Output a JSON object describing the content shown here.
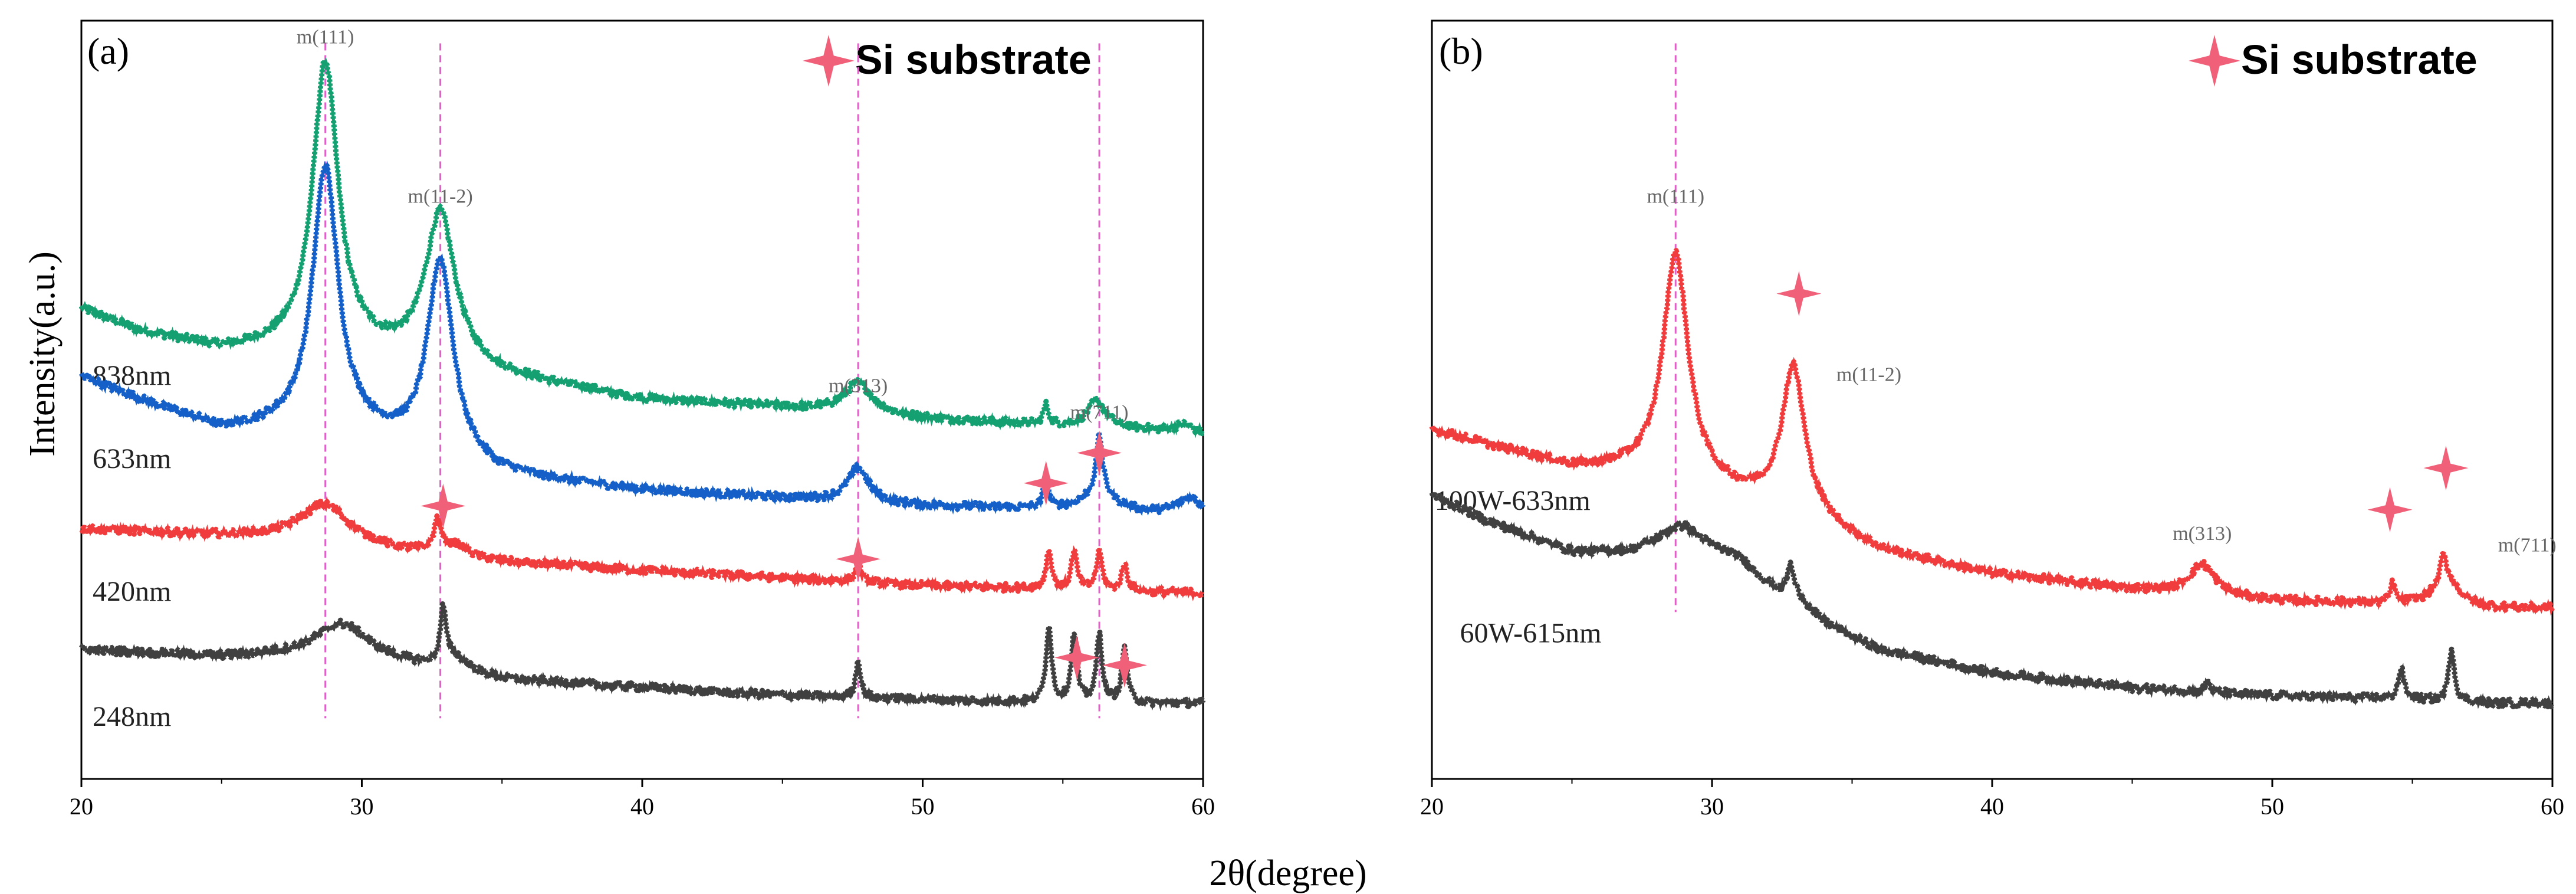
{
  "figure": {
    "xlabel": "2θ(degree)",
    "ylabel": "Intensity(a.u.)"
  },
  "colors": {
    "green": "#14a070",
    "blue": "#1560c8",
    "red": "#f03c3c",
    "gray": "#404040",
    "star": "#f06078",
    "peak_line": "#e060c8"
  },
  "chart_data": [
    {
      "type": "line",
      "panel": "(a)",
      "legend": "Si substrate",
      "xlabel": "2θ(degree)",
      "ylabel": "Intensity(a.u.)",
      "xlim": [
        20,
        60
      ],
      "ylim": [
        0,
        100
      ],
      "xticks": [
        20,
        30,
        40,
        50,
        60
      ],
      "peak_labels": [
        {
          "text": "m(111)",
          "x": 28.7,
          "y": 97
        },
        {
          "text": "m(11-2)",
          "x": 32.8,
          "y": 76
        },
        {
          "text": "m(313)",
          "x": 47.7,
          "y": 51
        },
        {
          "text": "m(711)",
          "x": 56.3,
          "y": 47.5
        }
      ],
      "peak_lines": [
        28.7,
        32.8,
        47.7,
        56.3
      ],
      "si_markers": [
        {
          "x": 32.9,
          "y": 36
        },
        {
          "x": 47.7,
          "y": 29
        },
        {
          "x": 54.4,
          "y": 39
        },
        {
          "x": 56.3,
          "y": 43
        },
        {
          "x": 55.5,
          "y": 16
        },
        {
          "x": 57.2,
          "y": 15
        }
      ],
      "series": [
        {
          "name": "838nm",
          "label": "838nm",
          "color_key": "green",
          "label_x": 20.4,
          "label_y": 52,
          "base": [
            [
              20,
              62
            ],
            [
              22,
              59
            ],
            [
              25,
              56.5
            ],
            [
              27,
              56.5
            ],
            [
              30,
              56
            ],
            [
              35,
              53
            ],
            [
              40,
              50
            ],
            [
              45,
              49
            ],
            [
              50,
              47.5
            ],
            [
              55,
              46.5
            ],
            [
              58,
              46
            ],
            [
              60,
              45.5
            ]
          ],
          "peaks": [
            [
              28.7,
              38,
              0.55
            ],
            [
              32.8,
              20,
              0.65
            ],
            [
              47.7,
              4,
              0.6
            ],
            [
              54.4,
              2.5,
              0.12
            ],
            [
              56.2,
              3.5,
              0.4
            ],
            [
              59.3,
              1,
              0.4
            ]
          ]
        },
        {
          "name": "633nm",
          "label": "633nm",
          "color_key": "blue",
          "label_x": 20.4,
          "label_y": 41,
          "base": [
            [
              20,
              53
            ],
            [
              22,
              50
            ],
            [
              25,
              46
            ],
            [
              27,
              46
            ],
            [
              30,
              45
            ],
            [
              35,
              40
            ],
            [
              40,
              38
            ],
            [
              45,
              37
            ],
            [
              50,
              36
            ],
            [
              55,
              35.5
            ],
            [
              58,
              35
            ],
            [
              60,
              35
            ]
          ],
          "peaks": [
            [
              28.7,
              35,
              0.55
            ],
            [
              32.8,
              26,
              0.55
            ],
            [
              47.7,
              4.5,
              0.45
            ],
            [
              54.4,
              4,
              0.1
            ],
            [
              56.3,
              7,
              0.12
            ],
            [
              56.3,
              3,
              0.6
            ],
            [
              59.5,
              2,
              0.5
            ]
          ]
        },
        {
          "name": "420nm",
          "label": "420nm",
          "color_key": "red",
          "label_x": 20.4,
          "label_y": 23.5,
          "base": [
            [
              20,
              33
            ],
            [
              25,
              32
            ],
            [
              28,
              31.5
            ],
            [
              31,
              30
            ],
            [
              35,
              28.5
            ],
            [
              40,
              27.5
            ],
            [
              45,
              26.5
            ],
            [
              50,
              25.5
            ],
            [
              55,
              25
            ],
            [
              60,
              24.5
            ]
          ],
          "peaks": [
            [
              28.7,
              5,
              1.1
            ],
            [
              32.7,
              4,
              0.15
            ],
            [
              33.3,
              1.5,
              0.6
            ],
            [
              47.7,
              2.5,
              0.12
            ],
            [
              54.5,
              5,
              0.12
            ],
            [
              55.4,
              5,
              0.12
            ],
            [
              56.3,
              5,
              0.12
            ],
            [
              57.2,
              3.5,
              0.12
            ]
          ]
        },
        {
          "name": "248nm",
          "label": "248nm",
          "color_key": "gray",
          "label_x": 20.4,
          "label_y": 7,
          "base": [
            [
              20,
              17
            ],
            [
              25,
              16
            ],
            [
              27,
              16
            ],
            [
              31,
              15
            ],
            [
              35,
              13
            ],
            [
              40,
              12
            ],
            [
              45,
              11
            ],
            [
              50,
              10.5
            ],
            [
              55,
              10
            ],
            [
              60,
              10
            ]
          ],
          "peaks": [
            [
              29.3,
              5,
              1.2
            ],
            [
              32.9,
              7,
              0.12
            ],
            [
              33.3,
              2,
              0.6
            ],
            [
              47.7,
              5,
              0.1
            ],
            [
              54.5,
              10,
              0.12
            ],
            [
              55.4,
              9,
              0.12
            ],
            [
              56.3,
              9,
              0.12
            ],
            [
              57.2,
              7,
              0.12
            ]
          ]
        }
      ]
    },
    {
      "type": "line",
      "panel": "(b)",
      "legend": "Si substrate",
      "xlabel": "2θ(degree)",
      "ylabel": "",
      "xlim": [
        20,
        60
      ],
      "ylim": [
        0,
        100
      ],
      "xticks": [
        20,
        30,
        40,
        50,
        60
      ],
      "peak_labels": [
        {
          "text": "m(111)",
          "x": 28.7,
          "y": 76
        },
        {
          "text": "m(11-2)",
          "x": 35.6,
          "y": 52.5
        },
        {
          "text": "m(313)",
          "x": 47.5,
          "y": 31.5
        },
        {
          "text": "m(711)",
          "x": 59.1,
          "y": 30
        }
      ],
      "peak_lines": [
        28.7
      ],
      "si_markers": [
        {
          "x": 33.1,
          "y": 64
        },
        {
          "x": 54.2,
          "y": 35.5
        },
        {
          "x": 56.2,
          "y": 41
        }
      ],
      "series": [
        {
          "name": "100W-633nm",
          "label": "100W-633nm",
          "color_key": "red",
          "label_x": 20.1,
          "label_y": 35.5,
          "base": [
            [
              20,
              46
            ],
            [
              22,
              44
            ],
            [
              25,
              41
            ],
            [
              27,
              40.5
            ],
            [
              30,
              38
            ],
            [
              33,
              35
            ],
            [
              36,
              30
            ],
            [
              40,
              27
            ],
            [
              45,
              25
            ],
            [
              50,
              23.5
            ],
            [
              55,
              23
            ],
            [
              58,
              22.5
            ],
            [
              60,
              22.5
            ]
          ],
          "peaks": [
            [
              28.7,
              30,
              0.55
            ],
            [
              32.9,
              19,
              0.5
            ],
            [
              47.5,
              4,
              0.55
            ],
            [
              54.3,
              2.5,
              0.1
            ],
            [
              56.2,
              4,
              0.5
            ],
            [
              56.1,
              3,
              0.1
            ]
          ]
        },
        {
          "name": "60W-615nm",
          "label": "60W-615nm",
          "color_key": "gray",
          "label_x": 21.0,
          "label_y": 18,
          "base": [
            [
              20,
              37.5
            ],
            [
              22,
              34
            ],
            [
              25,
              30
            ],
            [
              27,
              30
            ],
            [
              29,
              32
            ],
            [
              31,
              29
            ],
            [
              33,
              22
            ],
            [
              36,
              17
            ],
            [
              40,
              14
            ],
            [
              45,
              12
            ],
            [
              50,
              11
            ],
            [
              55,
              10.5
            ],
            [
              58,
              10
            ],
            [
              60,
              10
            ]
          ],
          "peaks": [
            [
              28.8,
              1.5,
              0.8
            ],
            [
              32.8,
              4,
              0.15
            ],
            [
              33.1,
              2,
              0.5
            ],
            [
              47.7,
              1.5,
              0.1
            ],
            [
              54.6,
              4,
              0.12
            ],
            [
              56.4,
              7,
              0.12
            ]
          ]
        }
      ]
    }
  ]
}
